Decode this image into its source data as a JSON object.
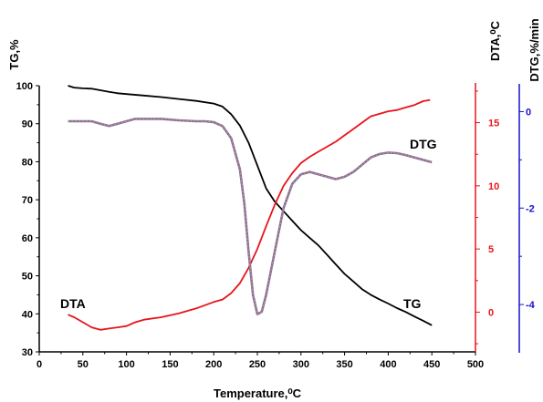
{
  "chart_data": {
    "type": "line",
    "xlabel": "Temperature,⁰C",
    "xlim": [
      0,
      500
    ],
    "x_ticks": [
      0,
      50,
      100,
      150,
      200,
      250,
      300,
      350,
      400,
      450,
      500
    ],
    "axes": {
      "tg": {
        "label": "TG,%",
        "ylim": [
          30,
          100
        ],
        "ticks": [
          30,
          40,
          50,
          60,
          70,
          80,
          90,
          100
        ],
        "color": "#000000",
        "position": "left"
      },
      "dta": {
        "label": "DTA,⁰C",
        "ylim": [
          -3,
          18
        ],
        "ticks": [
          0,
          5,
          10,
          15
        ],
        "color": "#e8141b",
        "position": "right"
      },
      "dtg": {
        "label": "DTG,%/min",
        "ylim": [
          -5,
          0.5
        ],
        "ticks": [
          0,
          -2,
          -4
        ],
        "color": "#1414cc",
        "position": "right-outer"
      }
    },
    "series": [
      {
        "name": "TG",
        "axis": "tg",
        "color": "#000000",
        "x": [
          33,
          40,
          50,
          60,
          70,
          80,
          90,
          100,
          120,
          140,
          160,
          180,
          200,
          210,
          220,
          230,
          240,
          250,
          260,
          270,
          280,
          290,
          300,
          310,
          320,
          330,
          340,
          350,
          360,
          370,
          380,
          390,
          400,
          410,
          420,
          430,
          440,
          450
        ],
        "y": [
          100.0,
          99.5,
          99.3,
          99.2,
          98.8,
          98.4,
          98.0,
          97.8,
          97.4,
          97.0,
          96.5,
          96.0,
          95.3,
          94.5,
          92.5,
          89.5,
          85.0,
          79.0,
          73.0,
          69.5,
          67.0,
          64.5,
          62.0,
          60.0,
          58.0,
          55.5,
          53.0,
          50.5,
          48.5,
          46.5,
          45.0,
          43.8,
          42.7,
          41.5,
          40.5,
          39.3,
          38.2,
          37.0
        ]
      },
      {
        "name": "DTA",
        "axis": "dta",
        "color": "#e8141b",
        "x": [
          33,
          40,
          50,
          60,
          70,
          80,
          90,
          100,
          110,
          120,
          140,
          160,
          180,
          200,
          210,
          220,
          230,
          240,
          250,
          260,
          270,
          280,
          290,
          300,
          310,
          320,
          330,
          340,
          350,
          360,
          370,
          380,
          390,
          400,
          410,
          420,
          430,
          440,
          448
        ],
        "y": [
          -0.2,
          -0.4,
          -0.8,
          -1.2,
          -1.4,
          -1.3,
          -1.2,
          -1.1,
          -0.8,
          -0.6,
          -0.4,
          -0.1,
          0.3,
          0.8,
          1.0,
          1.5,
          2.3,
          3.5,
          5.0,
          6.8,
          8.5,
          10.0,
          11.0,
          11.8,
          12.3,
          12.7,
          13.1,
          13.5,
          14.0,
          14.5,
          15.0,
          15.5,
          15.7,
          15.9,
          16.0,
          16.2,
          16.4,
          16.7,
          16.8
        ]
      },
      {
        "name": "DTG",
        "axis": "dtg",
        "color": "#8a6da8",
        "x": [
          33,
          50,
          60,
          70,
          80,
          90,
          100,
          110,
          120,
          140,
          160,
          180,
          190,
          200,
          210,
          220,
          230,
          235,
          240,
          245,
          250,
          255,
          260,
          270,
          280,
          290,
          300,
          310,
          320,
          330,
          340,
          350,
          360,
          370,
          380,
          390,
          400,
          410,
          420,
          430,
          440,
          450
        ],
        "y": [
          -0.2,
          -0.2,
          -0.2,
          -0.25,
          -0.3,
          -0.25,
          -0.2,
          -0.15,
          -0.15,
          -0.15,
          -0.18,
          -0.2,
          -0.2,
          -0.22,
          -0.3,
          -0.55,
          -1.2,
          -1.9,
          -2.9,
          -3.8,
          -4.2,
          -4.15,
          -3.8,
          -2.9,
          -2.0,
          -1.5,
          -1.3,
          -1.25,
          -1.3,
          -1.35,
          -1.4,
          -1.35,
          -1.25,
          -1.1,
          -0.95,
          -0.88,
          -0.85,
          -0.86,
          -0.9,
          -0.95,
          -1.0,
          -1.05
        ]
      }
    ],
    "annotations": [
      {
        "text": "DTG",
        "series": "DTG"
      },
      {
        "text": "DTA",
        "series": "DTA"
      },
      {
        "text": "TG",
        "series": "TG"
      }
    ],
    "grid": false,
    "legend": "none"
  }
}
